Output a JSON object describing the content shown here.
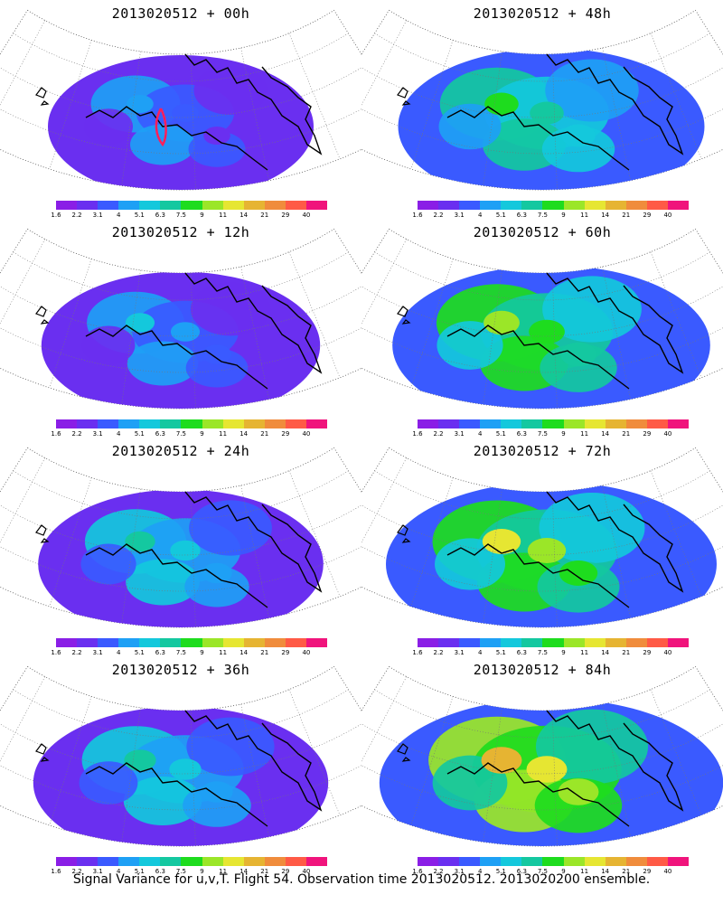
{
  "caption": "Signal Variance for u,v,T. Flight 54. Observation time 2013020512. 2013020200 ensemble.",
  "legend": {
    "colors": [
      "#8a1ee6",
      "#6a2ff0",
      "#3a5aff",
      "#1ea0f5",
      "#14c8dc",
      "#14c8a0",
      "#1edc1e",
      "#9be628",
      "#e6e632",
      "#e6b432",
      "#f08c3c",
      "#ff5a46",
      "#f0147c"
    ],
    "labels": [
      "1.6",
      "2.2",
      "3.1",
      "4",
      "5.1",
      "6.3",
      "7.5",
      "9",
      "11",
      "14",
      "21",
      "29",
      "40"
    ]
  },
  "panels": [
    {
      "title": "2013020512 + 00h",
      "intensity": 0.3
    },
    {
      "title": "2013020512 + 48h",
      "intensity": 0.55
    },
    {
      "title": "2013020512 + 12h",
      "intensity": 0.38
    },
    {
      "title": "2013020512 + 60h",
      "intensity": 0.62
    },
    {
      "title": "2013020512 + 24h",
      "intensity": 0.42
    },
    {
      "title": "2013020512 + 72h",
      "intensity": 0.7
    },
    {
      "title": "2013020512 + 36h",
      "intensity": 0.48
    },
    {
      "title": "2013020512 + 84h",
      "intensity": 0.78
    }
  ],
  "flight_track_label": "Flight 54"
}
